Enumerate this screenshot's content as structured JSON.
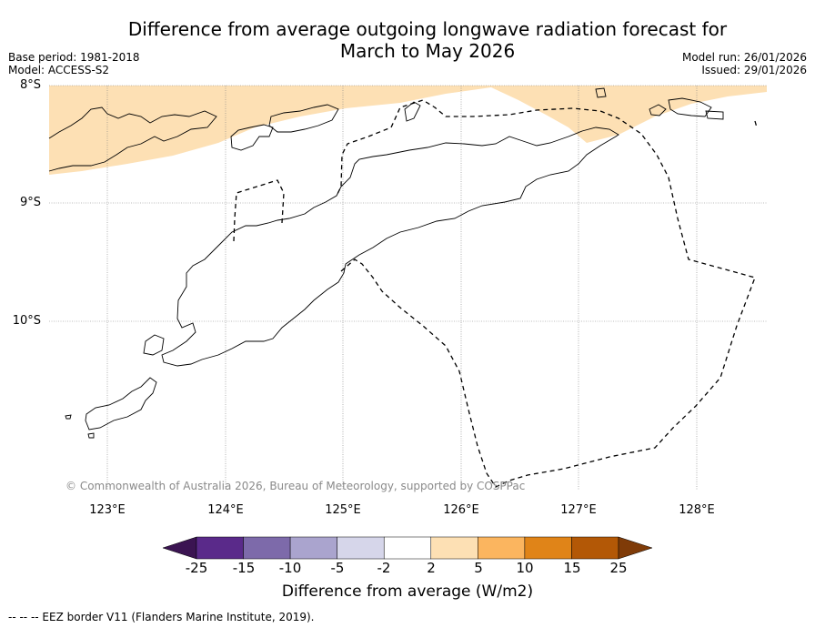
{
  "title": {
    "line1": "Difference from average outgoing longwave radiation forecast for",
    "line2": "March to May 2026"
  },
  "meta_left": {
    "base_period": "Base period: 1981-2018",
    "model": "Model: ACCESS-S2"
  },
  "meta_right": {
    "model_run": "Model run: 26/01/2026",
    "issued": "Issued: 29/01/2026"
  },
  "latitude_labels": [
    "8°S",
    "9°S",
    "10°S"
  ],
  "longitude_labels": [
    "123°E",
    "124°E",
    "125°E",
    "126°E",
    "127°E",
    "128°E"
  ],
  "copyright": "© Commonwealth of Australia 2026, Bureau of Meteorology, supported by COSPPac",
  "colorbar": {
    "ticks": [
      "-25",
      "-15",
      "-10",
      "-5",
      "-2",
      "2",
      "5",
      "10",
      "15",
      "25"
    ],
    "colors": [
      "#3b1452",
      "#5a2a8a",
      "#7d6aaa",
      "#aaa4ce",
      "#d6d6ea",
      "#ffffff",
      "#fde0b4",
      "#fbb55f",
      "#e08418",
      "#b35806",
      "#7f3b08"
    ],
    "label": "Difference from average (W/m2)"
  },
  "anomaly_fill_color": "#fde0b4",
  "footnote": "--  --  -- EEZ border V11 (Flanders Marine Institute, 2019)."
}
